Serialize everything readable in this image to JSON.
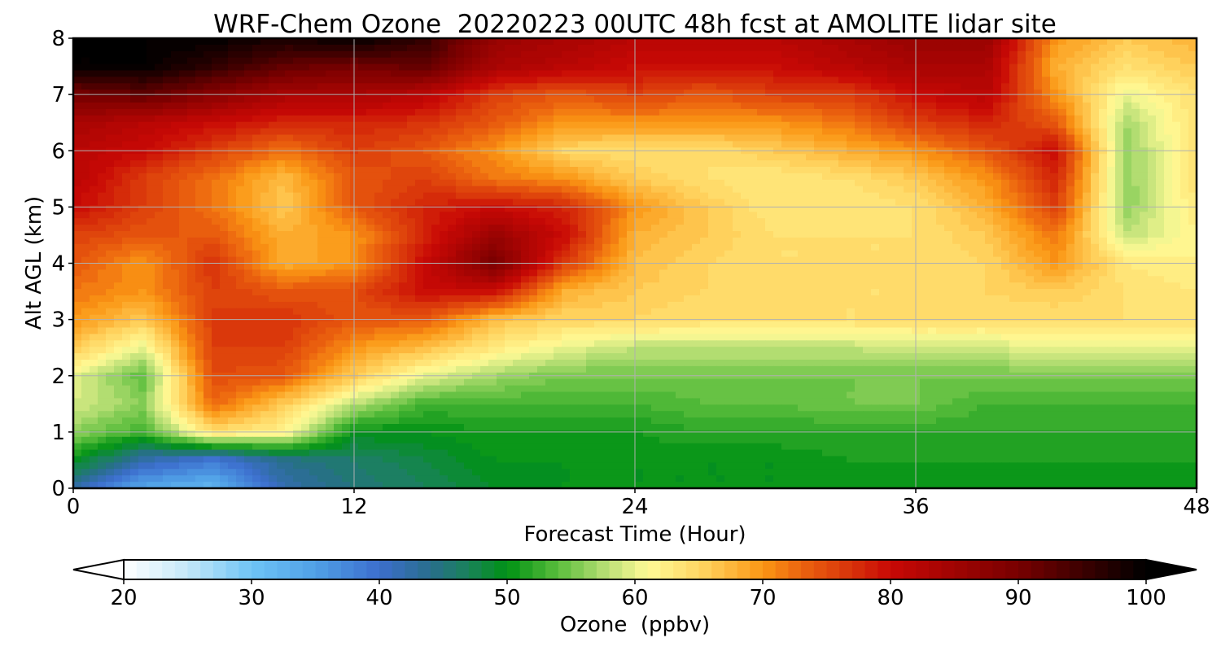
{
  "chart_data": {
    "type": "heatmap",
    "title": "WRF-Chem Ozone  20220223 00UTC 48h fcst at AMOLITE lidar site",
    "xlabel": "Forecast Time (Hour)",
    "ylabel": "Alt AGL (km)",
    "xlim": [
      0,
      48
    ],
    "ylim": [
      0,
      8
    ],
    "x_ticks": [
      "0",
      "12",
      "24",
      "36",
      "48"
    ],
    "y_ticks": [
      "0",
      "1",
      "2",
      "3",
      "4",
      "5",
      "6",
      "7",
      "8"
    ],
    "grid": true,
    "colorbar": {
      "label": "Ozone  (ppbv)",
      "min": 20,
      "max": 100,
      "step": 1,
      "extend": "both",
      "ticks": [
        "20",
        "30",
        "40",
        "50",
        "60",
        "70",
        "80",
        "90",
        "100"
      ]
    },
    "x": [
      0,
      3,
      6,
      9,
      12,
      15,
      18,
      21,
      24,
      27,
      30,
      33,
      36,
      39,
      42,
      45,
      48
    ],
    "y": [
      0,
      0.5,
      1,
      1.5,
      2,
      2.5,
      3,
      3.5,
      4,
      4.5,
      5,
      5.5,
      6,
      6.5,
      7,
      7.5,
      8
    ],
    "z": [
      [
        42,
        34,
        32,
        42,
        45,
        47,
        49,
        50,
        50,
        50,
        50,
        50,
        50,
        50,
        50,
        50,
        50
      ],
      [
        50,
        42,
        39,
        44,
        46,
        48,
        50,
        50,
        50,
        50,
        50,
        51,
        51,
        51,
        51,
        51,
        51
      ],
      [
        56,
        53,
        64,
        62,
        50,
        50,
        51,
        51,
        51,
        52,
        52,
        52,
        52,
        52,
        52,
        52,
        52
      ],
      [
        59,
        56,
        73,
        66,
        58,
        53,
        53,
        53,
        53,
        54,
        54,
        55,
        55,
        53,
        53,
        53,
        53
      ],
      [
        60,
        54,
        75,
        74,
        66,
        60,
        57,
        55,
        55,
        55,
        55,
        55,
        55,
        55,
        55,
        55,
        55
      ],
      [
        66,
        60,
        76,
        76,
        70,
        67,
        63,
        60,
        58,
        58,
        58,
        58,
        59,
        59,
        60,
        60,
        60
      ],
      [
        70,
        66,
        76,
        77,
        74,
        74,
        67,
        65,
        65,
        64,
        64,
        64,
        64,
        64,
        64,
        64,
        64
      ],
      [
        72,
        70,
        76,
        74,
        75,
        80,
        80,
        68,
        66,
        65,
        64,
        64,
        64,
        65,
        66,
        64,
        63
      ],
      [
        74,
        70,
        77,
        68,
        70,
        80,
        90,
        76,
        67,
        65,
        64,
        64,
        64,
        65,
        70,
        63,
        62
      ],
      [
        76,
        74,
        74,
        68,
        70,
        78,
        86,
        80,
        68,
        66,
        64,
        64,
        64,
        66,
        72,
        58,
        62
      ],
      [
        80,
        76,
        72,
        66,
        74,
        78,
        80,
        78,
        70,
        66,
        63,
        63,
        64,
        68,
        76,
        56,
        63
      ],
      [
        82,
        76,
        72,
        67,
        74,
        76,
        72,
        70,
        66,
        64,
        63,
        64,
        66,
        70,
        78,
        56,
        64
      ],
      [
        82,
        80,
        76,
        72,
        76,
        74,
        70,
        65,
        64,
        64,
        66,
        68,
        70,
        74,
        80,
        56,
        64
      ],
      [
        84,
        82,
        80,
        78,
        78,
        77,
        74,
        70,
        70,
        70,
        70,
        72,
        76,
        78,
        74,
        57,
        64
      ],
      [
        90,
        92,
        88,
        84,
        84,
        82,
        76,
        74,
        76,
        74,
        76,
        76,
        80,
        82,
        70,
        60,
        64
      ],
      [
        100,
        100,
        96,
        92,
        90,
        92,
        84,
        82,
        80,
        80,
        80,
        82,
        84,
        84,
        68,
        64,
        66
      ],
      [
        100,
        100,
        100,
        98,
        100,
        96,
        86,
        84,
        82,
        82,
        82,
        84,
        86,
        86,
        70,
        66,
        68
      ]
    ]
  }
}
